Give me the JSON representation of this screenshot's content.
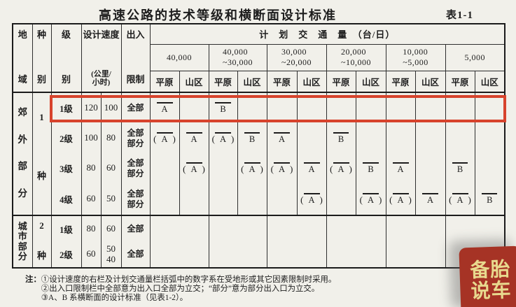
{
  "page": {
    "title": "高速公路的技术等级和横断面设计标准",
    "table_label": "表1-1"
  },
  "header": {
    "region_top": "地",
    "region_bottom": "域",
    "category_top": "种",
    "category_bottom": "别",
    "grade_top": "级",
    "grade_bottom": "别",
    "speed_top": "设计速度",
    "speed_bottom": "(公里/\n小时)",
    "access_top": "出入",
    "access_bottom": "限制",
    "traffic_title": "计　划　交　通　量　（台/日）",
    "brackets": [
      "40,000",
      "40,000\n~30,000",
      "30,000\n~20,000",
      "20,000\n~10,000",
      "10,000\n~5,000",
      "5,000"
    ],
    "terrain_plain": "平原",
    "terrain_mountain": "山区"
  },
  "sections": [
    {
      "region": "郊外部分",
      "category_num": "1",
      "category_char": "种",
      "merged_traffic": false,
      "rows": [
        {
          "grade": "1级",
          "speed_main": "120",
          "speed_alt": "100",
          "access": "全部",
          "traffic": [
            "A",
            "",
            "B",
            "",
            "",
            "",
            "",
            "",
            "",
            "",
            "",
            ""
          ]
        },
        {
          "grade": "2级",
          "speed_main": "100",
          "speed_alt": "80",
          "access": "全部\n部分",
          "traffic": [
            "(A)",
            "A",
            "(A)",
            "B",
            "A",
            "",
            "B",
            "",
            "",
            "",
            "",
            ""
          ]
        },
        {
          "grade": "3级",
          "speed_main": "80",
          "speed_alt": "60",
          "access": "全部\n部分",
          "traffic": [
            "",
            "(A)",
            "",
            "(A)",
            "(A)",
            "A",
            "(A)",
            "B",
            "A",
            "",
            "B",
            ""
          ]
        },
        {
          "grade": "4级",
          "speed_main": "60",
          "speed_alt": "50",
          "access": "全部\n部分",
          "traffic": [
            "",
            "",
            "",
            "",
            "",
            "(A)",
            "",
            "(A)",
            "(A)",
            "A",
            "(A)",
            "B"
          ]
        }
      ]
    },
    {
      "region": "城市部分",
      "category_num": "2",
      "category_char": "种",
      "merged_traffic": true,
      "rows": [
        {
          "grade": "1级",
          "speed_main": "80",
          "speed_alt": "60",
          "access": "全部",
          "traffic": [
            "",
            "",
            "",
            "",
            "",
            "",
            "",
            "",
            "",
            "",
            "",
            ""
          ]
        },
        {
          "grade": "2级",
          "speed_main": "60",
          "speed_alt": "50\n40",
          "access": "全部",
          "traffic": [
            "",
            "",
            "",
            "",
            "",
            "",
            "",
            "",
            "",
            "",
            "",
            ""
          ]
        }
      ]
    }
  ],
  "notes": {
    "label": "注：",
    "items": [
      "①设计速度的右栏及计划交通量栏括弧中的数字系在受地形或其它因素限制时采用。",
      "②出入口限制栏中全部意为出入口全部为立交；“部分”意为部分出入口为立交。",
      "③A、B 系横断面的设计标准（见表1-2）。"
    ]
  },
  "watermark": {
    "line1": "备胎",
    "line2": "说车"
  },
  "colors": {
    "highlight_box": "#d7432c",
    "watermark_bg": "#a63325",
    "watermark_text": "#e8d98e",
    "page_bg": "#f1f0ea"
  }
}
